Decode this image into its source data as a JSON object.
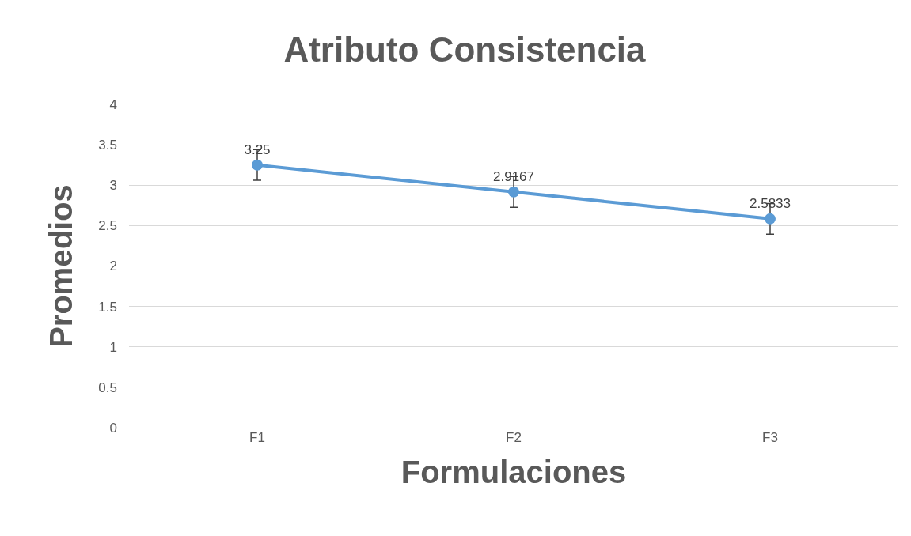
{
  "chart_data": {
    "type": "line",
    "title": "Atributo Consistencia",
    "xlabel": "Formulaciones",
    "ylabel": "Promedios",
    "categories": [
      "F1",
      "F2",
      "F3"
    ],
    "values": [
      3.25,
      2.9167,
      2.5833
    ],
    "errors": [
      0.19,
      0.19,
      0.19
    ],
    "color": "#5b9bd5",
    "data_labels": true,
    "marker": "circle",
    "line_style": "solid",
    "ylim": [
      0,
      4
    ],
    "yticks": [
      0,
      0.5,
      1,
      1.5,
      2,
      2.5,
      3,
      3.5,
      4
    ],
    "grid": "y",
    "legend": false
  }
}
